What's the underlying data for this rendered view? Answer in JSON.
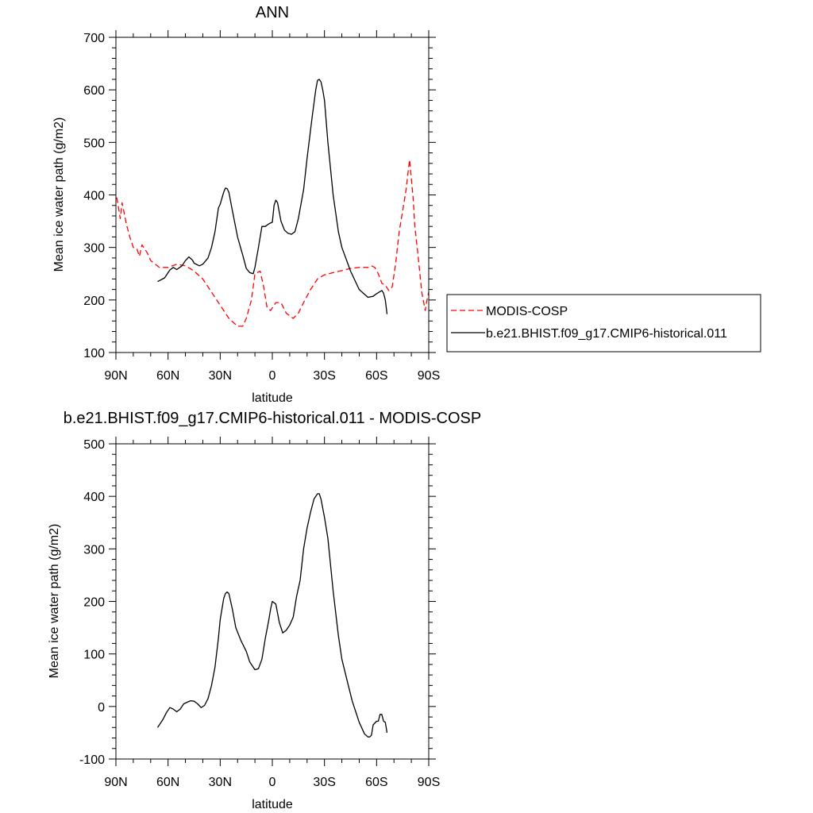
{
  "chart_data": [
    {
      "type": "line",
      "title": "ANN",
      "xlabel": "latitude",
      "ylabel": "Mean ice water path (g/m2)",
      "xlim": [
        90,
        -90
      ],
      "ylim": [
        100,
        700
      ],
      "x_ticks": [
        90,
        60,
        30,
        0,
        -30,
        -60,
        -90
      ],
      "x_tick_labels": [
        "90N",
        "60N",
        "30N",
        "0",
        "30S",
        "60S",
        "90S"
      ],
      "y_ticks": [
        100,
        200,
        300,
        400,
        500,
        600,
        700
      ],
      "y_tick_labels": [
        "100",
        "200",
        "300",
        "400",
        "500",
        "600",
        "700"
      ],
      "legend_position": "right",
      "series": [
        {
          "name": "MODIS-COSP",
          "color": "#ff0000",
          "style": "dashed",
          "x": [
            89.5,
            88.5,
            87.5,
            86.5,
            85.5,
            84,
            82,
            80,
            78,
            76.5,
            75,
            74,
            72,
            70,
            65,
            60,
            55,
            50,
            45,
            40,
            35,
            30,
            25,
            20,
            17,
            15,
            12,
            10,
            7,
            5,
            3,
            1,
            0,
            -2,
            -5,
            -8,
            -12,
            -15,
            -18,
            -22,
            -26,
            -30,
            -35,
            -40,
            -45,
            -50,
            -55,
            -57,
            -59,
            -61,
            -63,
            -65,
            -67,
            -69,
            -71,
            -73,
            -75,
            -77,
            -78,
            -79,
            -80,
            -81,
            -82,
            -84,
            -86,
            -88,
            -89,
            -90
          ],
          "y": [
            395,
            375,
            355,
            385,
            370,
            345,
            320,
            300,
            298,
            283,
            305,
            300,
            290,
            275,
            262,
            262,
            268,
            265,
            255,
            240,
            215,
            190,
            165,
            150,
            150,
            165,
            200,
            250,
            255,
            225,
            185,
            180,
            185,
            195,
            195,
            175,
            165,
            175,
            195,
            220,
            240,
            248,
            252,
            256,
            260,
            262,
            262,
            265,
            262,
            250,
            232,
            228,
            218,
            225,
            270,
            330,
            370,
            410,
            440,
            467,
            430,
            395,
            340,
            280,
            215,
            180,
            200,
            215
          ]
        },
        {
          "name": "b.e21.BHIST.f09_g17.CMIP6-historical.011",
          "color": "#000000",
          "style": "solid",
          "x": [
            66,
            62,
            59,
            57,
            55,
            52,
            50,
            48,
            46,
            45,
            42,
            40,
            37,
            35,
            33,
            31,
            30,
            28,
            27,
            26,
            25,
            23,
            20,
            17,
            15,
            13,
            11,
            10,
            8,
            6,
            4,
            2,
            0,
            -1,
            -2,
            -3,
            -5,
            -7,
            -9,
            -11,
            -13,
            -15,
            -18,
            -20,
            -23,
            -25,
            -26,
            -27,
            -28,
            -29,
            -30,
            -32,
            -35,
            -38,
            -40,
            -45,
            -50,
            -55,
            -58,
            -60,
            -63,
            -64,
            -65,
            -66
          ],
          "y": [
            235,
            242,
            257,
            262,
            258,
            265,
            275,
            282,
            276,
            270,
            265,
            268,
            280,
            300,
            330,
            375,
            382,
            405,
            413,
            412,
            405,
            370,
            320,
            285,
            260,
            252,
            250,
            262,
            300,
            340,
            340,
            345,
            348,
            380,
            390,
            385,
            350,
            333,
            327,
            325,
            330,
            355,
            410,
            470,
            550,
            600,
            618,
            620,
            615,
            600,
            580,
            500,
            400,
            330,
            300,
            255,
            220,
            205,
            207,
            212,
            218,
            213,
            200,
            173
          ]
        }
      ]
    },
    {
      "type": "line",
      "title": "b.e21.BHIST.f09_g17.CMIP6-historical.011 - MODIS-COSP",
      "xlabel": "latitude",
      "ylabel": "Mean ice water path (g/m2)",
      "xlim": [
        90,
        -90
      ],
      "ylim": [
        -100,
        500
      ],
      "x_ticks": [
        90,
        60,
        30,
        0,
        -30,
        -60,
        -90
      ],
      "x_tick_labels": [
        "90N",
        "60N",
        "30N",
        "0",
        "30S",
        "60S",
        "90S"
      ],
      "y_ticks": [
        -100,
        0,
        100,
        200,
        300,
        400,
        500
      ],
      "y_tick_labels": [
        "-100",
        "0",
        "100",
        "200",
        "300",
        "400",
        "500"
      ],
      "series": [
        {
          "color": "#000000",
          "style": "solid",
          "x": [
            66,
            63,
            61,
            59,
            57,
            55,
            53,
            51,
            49,
            47,
            45,
            43,
            41,
            39,
            37,
            35,
            33,
            31,
            30,
            28,
            27,
            26,
            25,
            23,
            21,
            18,
            15,
            13,
            10,
            8,
            6,
            4,
            2,
            1,
            0,
            -2,
            -4,
            -6,
            -8,
            -10,
            -12,
            -14,
            -16,
            -18,
            -20,
            -22,
            -24,
            -26,
            -27,
            -28,
            -30,
            -32,
            -35,
            -38,
            -40,
            -43,
            -46,
            -50,
            -53,
            -55,
            -56,
            -57,
            -58,
            -60,
            -61,
            -62,
            -63,
            -64,
            -65,
            -66
          ],
          "y": [
            -40,
            -25,
            -12,
            -2,
            -5,
            -10,
            -5,
            5,
            8,
            11,
            10,
            5,
            -2,
            2,
            15,
            40,
            75,
            130,
            165,
            205,
            215,
            218,
            215,
            185,
            150,
            125,
            105,
            85,
            70,
            72,
            90,
            130,
            165,
            185,
            200,
            195,
            160,
            140,
            145,
            155,
            170,
            210,
            240,
            300,
            340,
            370,
            395,
            405,
            405,
            395,
            360,
            320,
            220,
            135,
            90,
            50,
            10,
            -30,
            -52,
            -58,
            -58,
            -55,
            -35,
            -28,
            -28,
            -15,
            -15,
            -28,
            -30,
            -50
          ]
        }
      ]
    }
  ]
}
